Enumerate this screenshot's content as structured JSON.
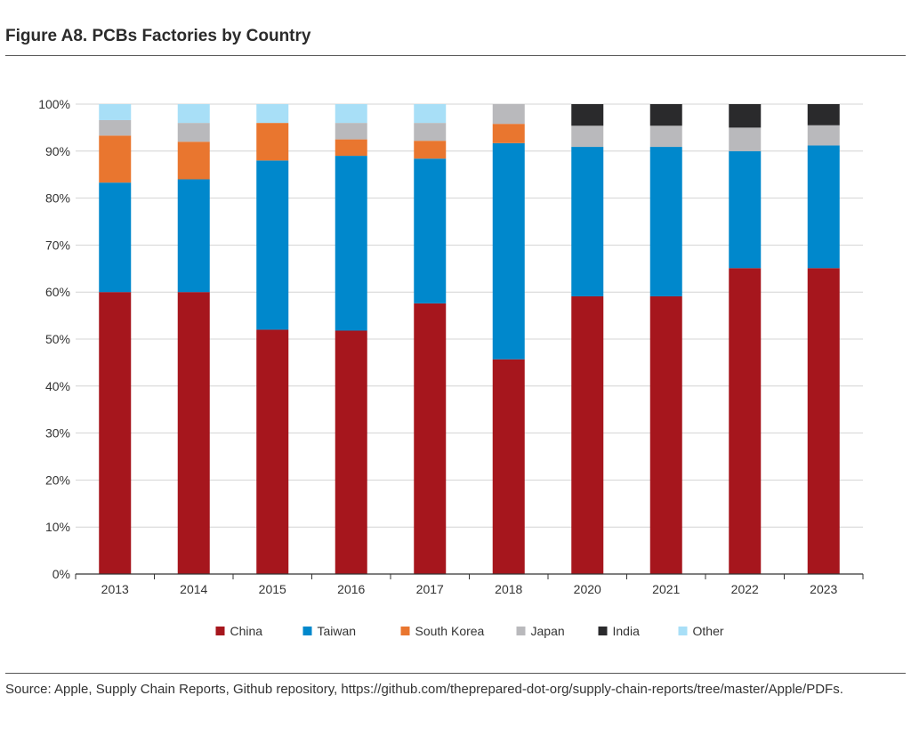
{
  "figure": {
    "title": "Figure A8. PCBs Factories by Country",
    "source": "Source: Apple, Supply Chain Reports, Github repository, https://github.com/theprepared-dot-org/supply-chain-reports/tree/master/Apple/PDFs."
  },
  "chart_data": {
    "type": "bar",
    "stacked": true,
    "title": "",
    "xlabel": "",
    "ylabel": "",
    "ylim": [
      0,
      100
    ],
    "yticks": [
      "0%",
      "10%",
      "20%",
      "30%",
      "40%",
      "50%",
      "60%",
      "70%",
      "80%",
      "90%",
      "100%"
    ],
    "grid": true,
    "legend_position": "bottom",
    "categories": [
      "2013",
      "2014",
      "2015",
      "2016",
      "2017",
      "2018",
      "2020",
      "2021",
      "2022",
      "2023"
    ],
    "series": [
      {
        "name": "China",
        "color": "#a6161d",
        "values": [
          60,
          60,
          52,
          51.8,
          57.6,
          45.7,
          59.1,
          59.1,
          65.1,
          65.1
        ]
      },
      {
        "name": "Taiwan",
        "color": "#0088cc",
        "values": [
          23.3,
          24,
          36,
          37.2,
          30.8,
          46,
          31.8,
          31.8,
          24.9,
          26.1
        ]
      },
      {
        "name": "South Korea",
        "color": "#e9762f",
        "values": [
          10,
          8,
          8,
          3.5,
          3.8,
          4.1,
          0,
          0,
          0,
          0
        ]
      },
      {
        "name": "Japan",
        "color": "#b9b9bc",
        "values": [
          3.3,
          4,
          0,
          3.5,
          3.8,
          4.2,
          4.5,
          4.5,
          5,
          4.3
        ]
      },
      {
        "name": "India",
        "color": "#2a2a2c",
        "values": [
          0,
          0,
          0,
          0,
          0,
          0,
          4.6,
          4.6,
          5,
          4.5
        ]
      },
      {
        "name": "Other",
        "color": "#a8dff7",
        "values": [
          3.4,
          4,
          4,
          4,
          4,
          0,
          0,
          0,
          0,
          0
        ]
      }
    ]
  }
}
